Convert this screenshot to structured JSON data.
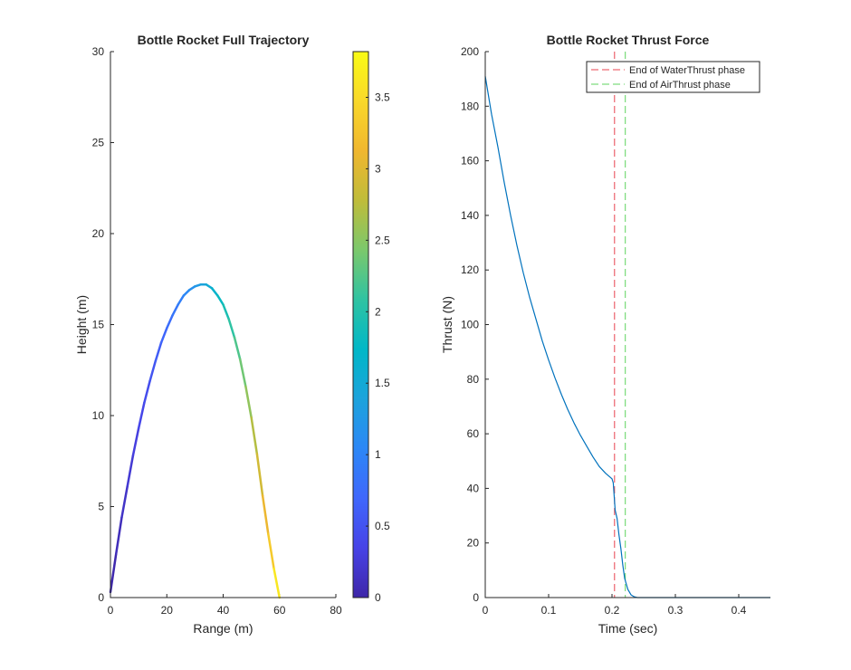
{
  "chart_data": [
    {
      "type": "line",
      "title": "Bottle Rocket Full Trajectory",
      "xlabel": "Range (m)",
      "ylabel": "Height (m)",
      "xlim": [
        0,
        80
      ],
      "ylim": [
        0,
        30
      ],
      "xticks": [
        "0",
        "20",
        "40",
        "60",
        "80"
      ],
      "yticks": [
        "0",
        "5",
        "10",
        "15",
        "20",
        "25",
        "30"
      ],
      "grid": false,
      "series": [
        {
          "x": [
            0,
            2,
            4,
            6,
            8,
            10,
            12,
            14,
            16,
            18,
            20,
            22,
            24,
            26,
            28,
            30,
            32,
            34,
            36,
            38,
            40,
            42,
            44,
            46,
            48,
            50,
            52,
            54,
            56,
            58,
            60
          ],
          "y": [
            0.3,
            2.4,
            4.4,
            6.1,
            7.8,
            9.3,
            10.7,
            11.9,
            13.0,
            14.0,
            14.8,
            15.5,
            16.1,
            16.6,
            16.9,
            17.1,
            17.2,
            17.2,
            17.0,
            16.6,
            16.1,
            15.3,
            14.3,
            13.1,
            11.6,
            9.9,
            7.9,
            5.6,
            3.5,
            1.6,
            0.0
          ],
          "c": [
            0.0,
            0.07,
            0.14,
            0.2,
            0.27,
            0.34,
            0.41,
            0.48,
            0.56,
            0.64,
            0.72,
            0.81,
            0.9,
            1.0,
            1.1,
            1.21,
            1.33,
            1.45,
            1.58,
            1.72,
            1.86,
            2.0,
            2.15,
            2.3,
            2.46,
            2.63,
            2.81,
            3.0,
            3.2,
            3.45,
            3.8
          ]
        }
      ],
      "colorbar": {
        "ticks": [
          "0",
          "0.5",
          "1",
          "1.5",
          "2",
          "2.5",
          "3",
          "3.5"
        ],
        "clim": [
          0,
          3.82
        ],
        "colormap": [
          "#3e26a8",
          "#4743e7",
          "#3f67fc",
          "#2c87f6",
          "#1ca3dc",
          "#00b7c7",
          "#2fc3a2",
          "#7bc86c",
          "#bfbc3a",
          "#f0b72f",
          "#f9d82a",
          "#f9fb15"
        ]
      }
    },
    {
      "type": "line",
      "title": "Bottle Rocket Thrust Force",
      "xlabel": "Time (sec)",
      "ylabel": "Thrust (N)",
      "xlim": [
        0,
        0.45
      ],
      "ylim": [
        0,
        200
      ],
      "xticks": [
        "0",
        "0.1",
        "0.2",
        "0.3",
        "0.4"
      ],
      "yticks": [
        "0",
        "20",
        "40",
        "60",
        "80",
        "100",
        "120",
        "140",
        "160",
        "180",
        "200"
      ],
      "grid": false,
      "series": [
        {
          "name": "Thrust",
          "color": "#0072bd",
          "x": [
            0,
            0.005,
            0.01,
            0.02,
            0.03,
            0.04,
            0.05,
            0.06,
            0.07,
            0.08,
            0.09,
            0.1,
            0.11,
            0.12,
            0.13,
            0.14,
            0.15,
            0.16,
            0.17,
            0.18,
            0.19,
            0.2,
            0.202,
            0.205,
            0.208,
            0.211,
            0.214,
            0.217,
            0.22,
            0.225,
            0.23,
            0.235,
            0.24,
            0.25,
            0.3,
            0.35,
            0.4,
            0.45
          ],
          "y": [
            191,
            184,
            177,
            165,
            152,
            140,
            129,
            119,
            110,
            102,
            94,
            87,
            80.5,
            74.5,
            69,
            64,
            59.5,
            55.5,
            51.5,
            48,
            45.5,
            43.5,
            42,
            32,
            29,
            23,
            18,
            12,
            7,
            3,
            1,
            0.3,
            0,
            0,
            0,
            0,
            0,
            0
          ]
        }
      ],
      "vlines": [
        {
          "name": "End of WaterThrust phase",
          "x": 0.204,
          "color": "#e8434f"
        },
        {
          "name": "End of AirThrust phase",
          "x": 0.221,
          "color": "#5fd35f"
        }
      ],
      "legend_position": "top-right"
    }
  ]
}
